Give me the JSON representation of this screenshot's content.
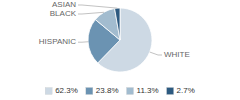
{
  "chart_data": {
    "type": "pie",
    "categories": [
      "WHITE",
      "HISPANIC",
      "BLACK",
      "ASIAN"
    ],
    "values": [
      62.3,
      23.8,
      11.3,
      2.7
    ],
    "value_labels": [
      "62.3%",
      "23.8%",
      "11.3%",
      "2.7%"
    ],
    "colors": [
      "#cdd9e4",
      "#6b93b2",
      "#a2bccf",
      "#2d5a80"
    ],
    "legend": "bottom"
  }
}
